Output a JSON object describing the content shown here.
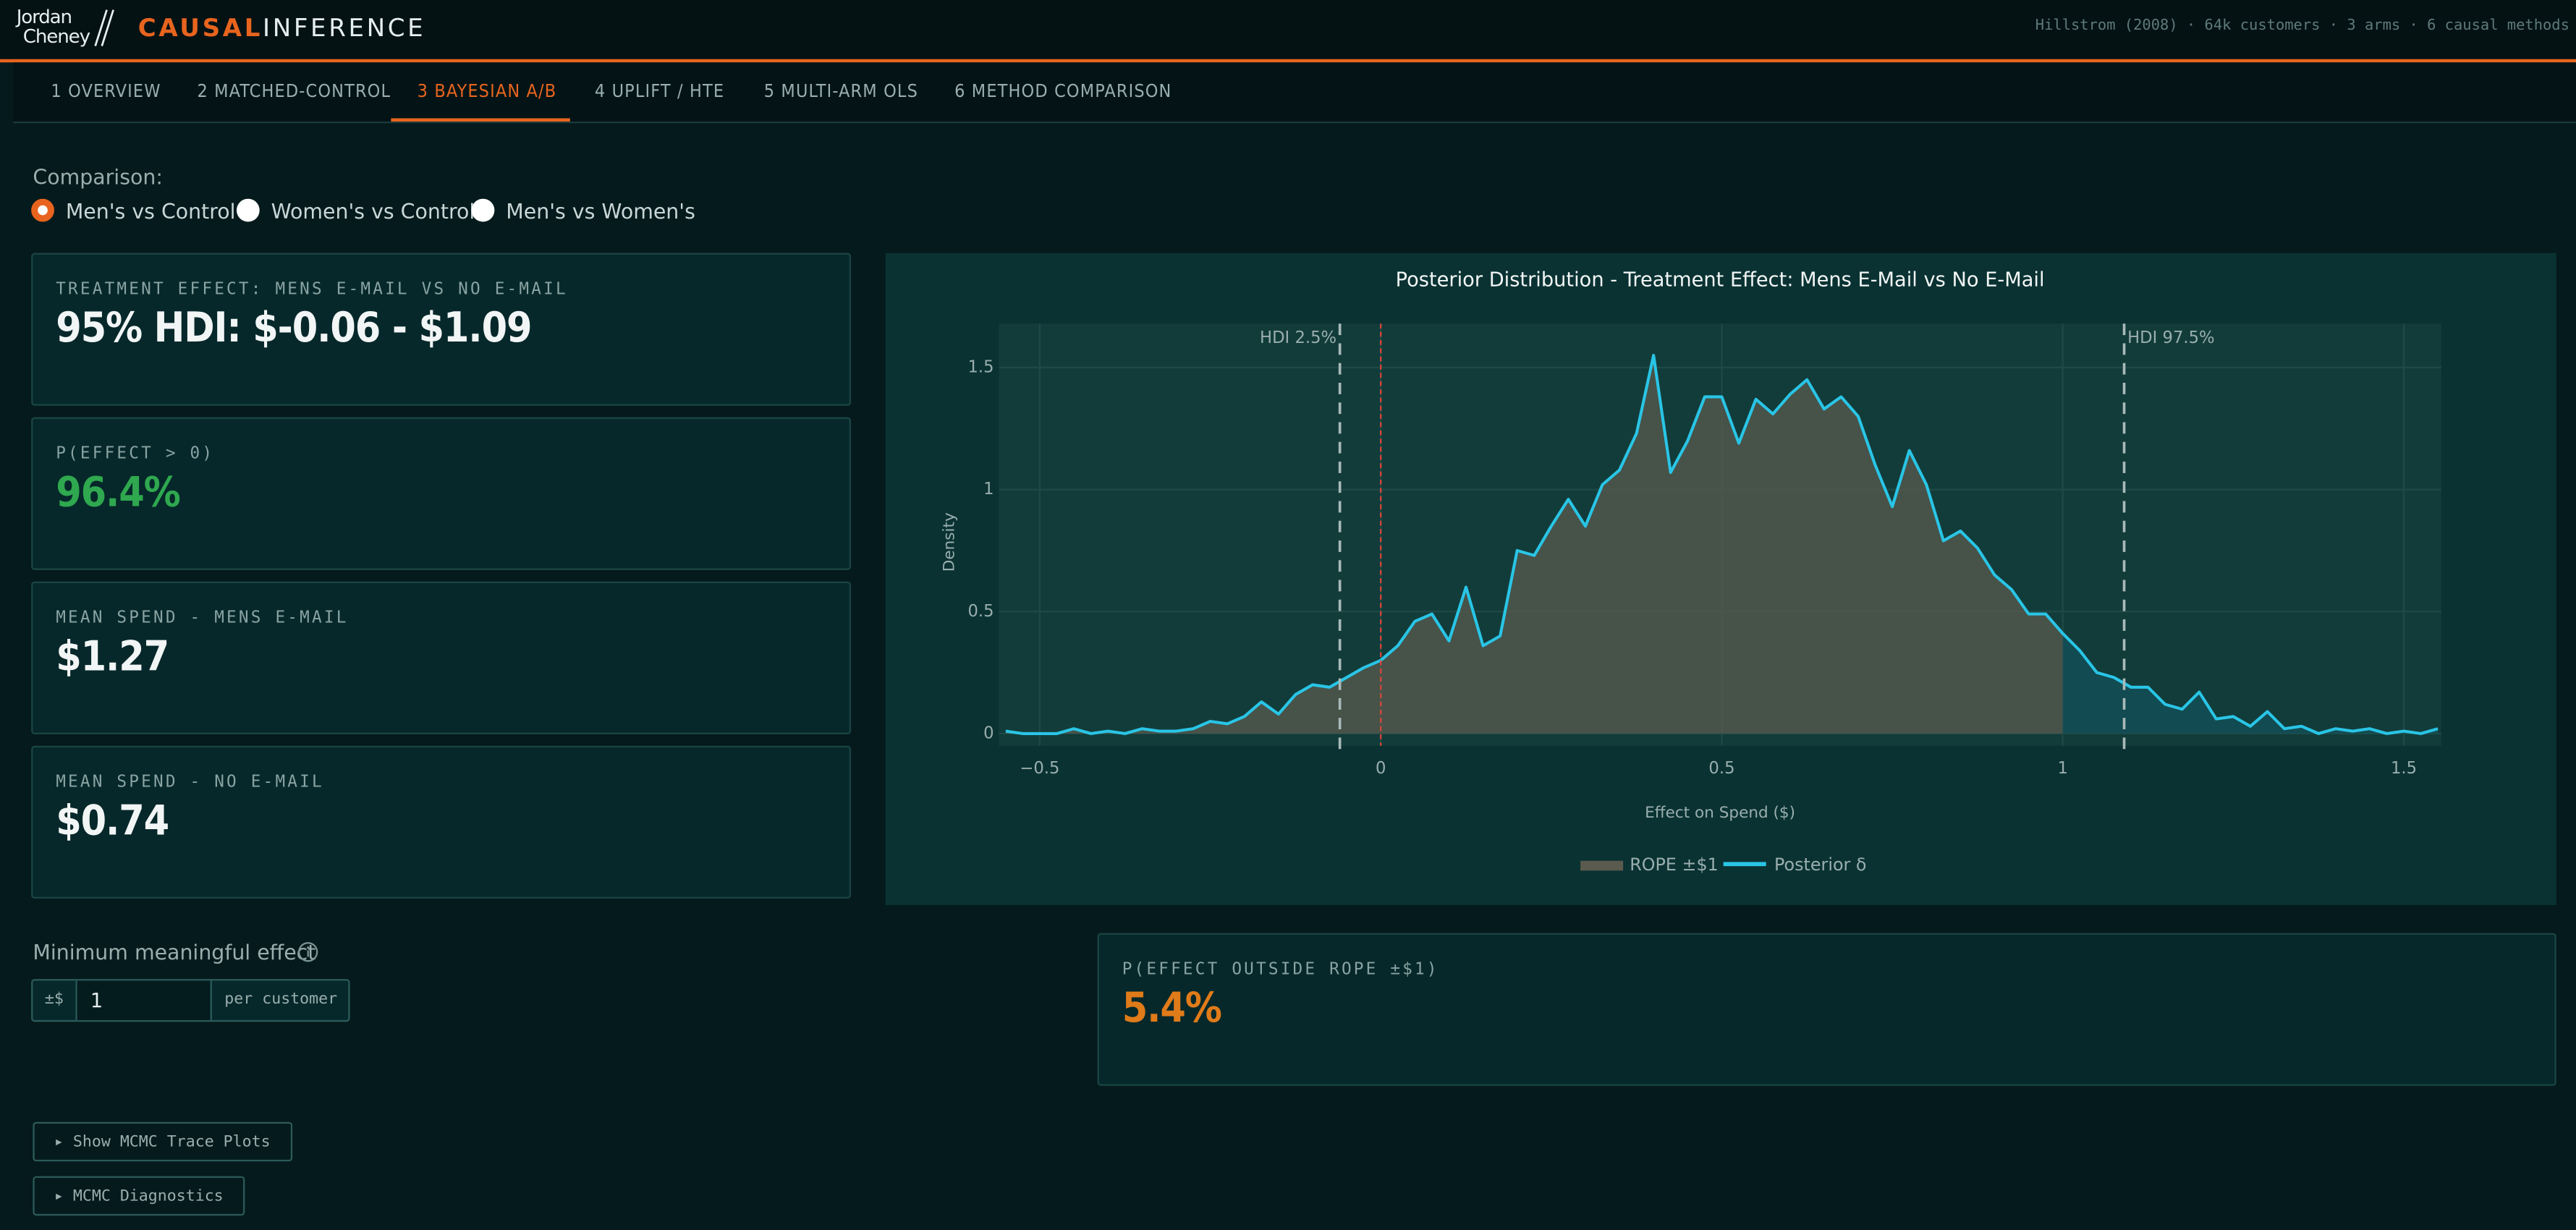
{
  "header": {
    "logo_top": "Jordan",
    "logo_bottom": "Cheney",
    "brand_accent": "CAUSAL",
    "brand_rest": "INFERENCE",
    "info": "Hillstrom (2008) · 64k customers · 3 arms · 6 causal methods"
  },
  "tabs": [
    "1 OVERVIEW",
    "2 MATCHED-CONTROL",
    "3 BAYESIAN A/B",
    "4 UPLIFT / HTE",
    "5 MULTI-ARM OLS",
    "6 METHOD COMPARISON"
  ],
  "comparison": {
    "label": "Comparison:",
    "options": [
      "Men's vs Control",
      "Women's vs Control",
      "Men's vs Women's"
    ]
  },
  "cards": [
    {
      "label": "TREATMENT EFFECT: MENS E-MAIL VS NO E-MAIL",
      "value": "95% HDI: $-0.06 - $1.09"
    },
    {
      "label": "P(EFFECT > 0)",
      "value": "96.4%"
    },
    {
      "label": "MEAN SPEND - MENS E-MAIL",
      "value": "$1.27"
    },
    {
      "label": "MEAN SPEND - NO E-MAIL",
      "value": "$0.74"
    }
  ],
  "rope_input": {
    "label": "Minimum meaningful effect",
    "prefix": "±$",
    "value": "1",
    "suffix": "per customer"
  },
  "rope_card": {
    "label": "P(EFFECT OUTSIDE ROPE ±$1)",
    "value": "5.4%"
  },
  "buttons": [
    "▸ Show MCMC Trace Plots",
    "▸ MCMC Diagnostics"
  ],
  "chart_data": {
    "type": "line",
    "title": "Posterior Distribution - Treatment Effect: Mens E-Mail vs No E-Mail",
    "x_label": "Effect on Spend ($)",
    "y_label": "Density",
    "x": [
      -0.55,
      -0.525,
      -0.5,
      -0.475,
      -0.45,
      -0.425,
      -0.4,
      -0.375,
      -0.35,
      -0.325,
      -0.3,
      -0.275,
      -0.25,
      -0.225,
      -0.2,
      -0.175,
      -0.15,
      -0.125,
      -0.1,
      -0.075,
      -0.05,
      -0.025,
      0,
      0.025,
      0.05,
      0.075,
      0.1,
      0.125,
      0.15,
      0.175,
      0.2,
      0.225,
      0.25,
      0.275,
      0.3,
      0.325,
      0.35,
      0.375,
      0.4,
      0.425,
      0.45,
      0.475,
      0.5,
      0.525,
      0.55,
      0.575,
      0.6,
      0.625,
      0.65,
      0.675,
      0.7,
      0.725,
      0.75,
      0.775,
      0.8,
      0.825,
      0.85,
      0.875,
      0.9,
      0.925,
      0.95,
      0.975,
      1,
      1.025,
      1.05,
      1.075,
      1.1,
      1.125,
      1.15,
      1.175,
      1.2,
      1.225,
      1.25,
      1.275,
      1.3,
      1.325,
      1.35,
      1.375,
      1.4,
      1.425,
      1.45,
      1.475,
      1.5,
      1.525,
      1.55
    ],
    "series": [
      {
        "name": "Posterior δ",
        "color": "#29c5e6",
        "values": [
          0.01,
          0,
          0,
          0,
          0.02,
          0,
          0.01,
          0,
          0.02,
          0.01,
          0.01,
          0.02,
          0.05,
          0.04,
          0.07,
          0.13,
          0.08,
          0.16,
          0.2,
          0.19,
          0.23,
          0.27,
          0.3,
          0.36,
          0.46,
          0.49,
          0.38,
          0.6,
          0.36,
          0.4,
          0.75,
          0.73,
          0.85,
          0.96,
          0.85,
          1.02,
          1.08,
          1.23,
          1.55,
          1.07,
          1.2,
          1.38,
          1.38,
          1.19,
          1.37,
          1.31,
          1.39,
          1.45,
          1.33,
          1.38,
          1.3,
          1.1,
          0.93,
          1.16,
          1.02,
          0.79,
          0.83,
          0.76,
          0.65,
          0.59,
          0.49,
          0.49,
          0.41,
          0.34,
          0.25,
          0.23,
          0.19,
          0.19,
          0.12,
          0.1,
          0.17,
          0.06,
          0.07,
          0.03,
          0.09,
          0.02,
          0.03,
          0,
          0.02,
          0.01,
          0.02,
          0,
          0.01,
          0,
          0.02
        ]
      }
    ],
    "rope": {
      "name": "ROPE ±$1",
      "range": [
        -1,
        1
      ],
      "color": "#5a5a4e",
      "outside_color": "#13505a"
    },
    "vlines": [
      {
        "value": -0.06,
        "label": "HDI 2.5%"
      },
      {
        "value": 1.09,
        "label": "HDI 97.5%"
      }
    ],
    "ref_line": {
      "value": 0,
      "color": "#d9463a"
    },
    "xlim": [
      -0.56,
      1.555
    ],
    "ylim": [
      -0.05,
      1.68
    ],
    "xticks": [
      {
        "value": -0.5,
        "label": "−0.5"
      },
      0,
      0.5,
      1,
      1.5
    ],
    "yticks": [
      0,
      0.5,
      1,
      1.5
    ],
    "grid": true,
    "legend": "bottom"
  }
}
